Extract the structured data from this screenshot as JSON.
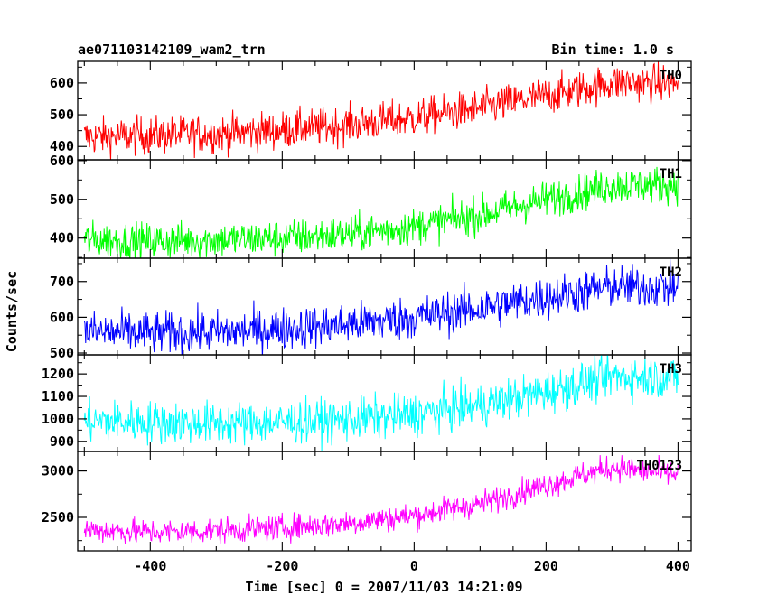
{
  "header": {
    "title": "ae071103142109_wam2_trn",
    "bin_time": "Bin time: 1.0 s"
  },
  "chart_data": {
    "type": "line",
    "title": "ae071103142109_wam2_trn",
    "subtitle": "Bin time: 1.0 s",
    "xlabel": "Time [sec] 0 = 2007/11/03 14:21:09",
    "ylabel": "Counts/sec",
    "xlim": [
      -510,
      420
    ],
    "xticks": [
      -400,
      -200,
      0,
      200,
      400
    ],
    "x_start": -500,
    "x_end": 400,
    "bin_time": 1.0,
    "grid": false,
    "legend": "none",
    "panels": [
      {
        "name": "TH0",
        "color": "#ff0000",
        "ylim": [
          358,
          668
        ],
        "yticks": [
          400,
          500,
          600
        ],
        "trend_x": [
          -500,
          -400,
          -300,
          -200,
          -100,
          0,
          100,
          200,
          300,
          400
        ],
        "trend_y": [
          430,
          435,
          440,
          452,
          468,
          490,
          520,
          560,
          600,
          600
        ],
        "noise": 30
      },
      {
        "name": "TH1",
        "color": "#00ff00",
        "ylim": [
          348,
          602
        ],
        "yticks": [
          400,
          500,
          600
        ],
        "trend_x": [
          -500,
          -400,
          -300,
          -200,
          -100,
          0,
          100,
          200,
          300,
          400
        ],
        "trend_y": [
          395,
          392,
          395,
          400,
          410,
          430,
          460,
          500,
          535,
          540
        ],
        "noise": 24
      },
      {
        "name": "TH2",
        "color": "#0000ff",
        "ylim": [
          495,
          765
        ],
        "yticks": [
          500,
          600,
          700
        ],
        "trend_x": [
          -500,
          -400,
          -300,
          -200,
          -100,
          0,
          100,
          200,
          300,
          400
        ],
        "trend_y": [
          560,
          555,
          558,
          568,
          580,
          600,
          625,
          655,
          685,
          685
        ],
        "noise": 30
      },
      {
        "name": "TH3",
        "color": "#00ffff",
        "ylim": [
          855,
          1285
        ],
        "yticks": [
          900,
          1000,
          1100,
          1200
        ],
        "trend_x": [
          -500,
          -400,
          -300,
          -200,
          -100,
          0,
          100,
          200,
          300,
          400
        ],
        "trend_y": [
          990,
          985,
          980,
          985,
          995,
          1020,
          1060,
          1120,
          1190,
          1185
        ],
        "noise": 48
      },
      {
        "name": "TH0123",
        "color": "#ff00ff",
        "ylim": [
          2140,
          3210
        ],
        "yticks": [
          2500,
          3000
        ],
        "trend_x": [
          -500,
          -400,
          -300,
          -200,
          -100,
          0,
          100,
          200,
          300,
          400
        ],
        "trend_y": [
          2370,
          2340,
          2355,
          2390,
          2440,
          2520,
          2650,
          2850,
          3040,
          2960
        ],
        "noise": 70
      }
    ]
  }
}
